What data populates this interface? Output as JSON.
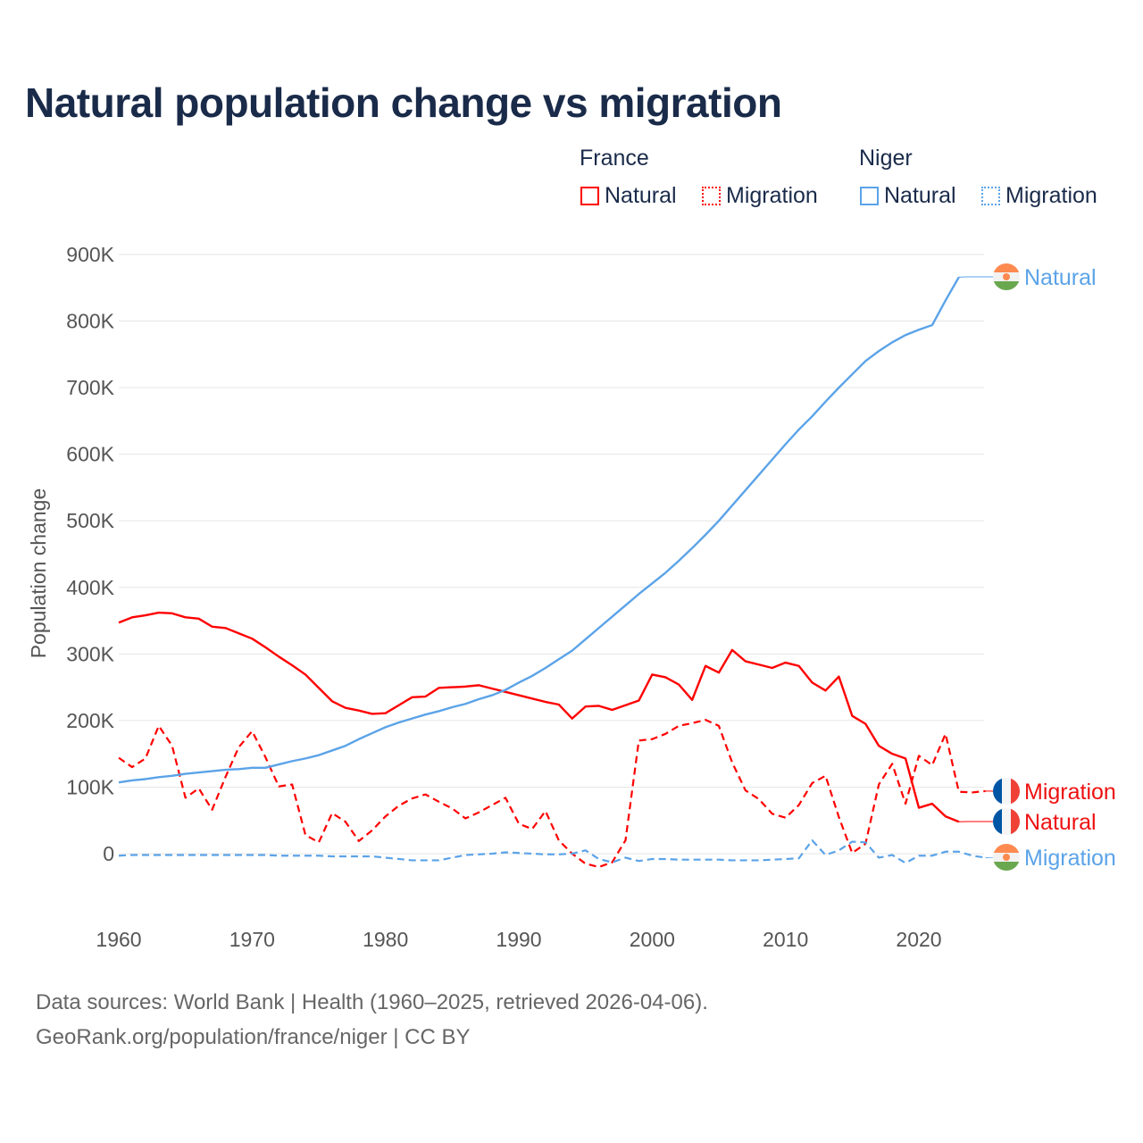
{
  "chart_data": {
    "type": "line",
    "title": "Natural population change vs migration",
    "xlabel": "",
    "ylabel": "Population change",
    "xlim": [
      1960,
      2025
    ],
    "ylim": [
      -50000,
      900000
    ],
    "grid": true,
    "x_ticks": [
      1960,
      1970,
      1980,
      1990,
      2000,
      2010,
      2020
    ],
    "x_tick_labels": [
      "1960",
      "1970",
      "1980",
      "1990",
      "2000",
      "2010",
      "2020"
    ],
    "y_ticks": [
      0,
      100000,
      200000,
      300000,
      400000,
      500000,
      600000,
      700000,
      800000,
      900000
    ],
    "y_tick_labels": [
      "0",
      "100K",
      "200K",
      "300K",
      "400K",
      "500K",
      "600K",
      "700K",
      "800K",
      "900K"
    ],
    "legend": {
      "placement": "top-right",
      "groups": [
        {
          "label": "France",
          "items": [
            "Natural",
            "Migration"
          ]
        },
        {
          "label": "Niger",
          "items": [
            "Natural",
            "Migration"
          ]
        }
      ]
    },
    "series": [
      {
        "name": "France Natural",
        "country": "France",
        "kind": "Natural",
        "label": "Natural",
        "color": "#ff0000",
        "dash": false,
        "x0": 1960,
        "values": [
          347000,
          355000,
          358000,
          362000,
          361000,
          355000,
          353000,
          341000,
          339000,
          331000,
          323000,
          310000,
          296000,
          283000,
          269000,
          249000,
          229000,
          219000,
          215000,
          210000,
          211000,
          223000,
          235000,
          236000,
          249000,
          250000,
          251000,
          253000,
          248000,
          243000,
          238000,
          233000,
          228000,
          224000,
          203000,
          221000,
          222000,
          216000,
          223000,
          230000,
          269000,
          265000,
          254000,
          231000,
          282000,
          272000,
          306000,
          289000,
          284000,
          279000,
          287000,
          282000,
          257000,
          245000,
          266000,
          207000,
          195000,
          162000,
          150000,
          143000,
          69000,
          75000,
          56000,
          48000
        ]
      },
      {
        "name": "France Migration",
        "country": "France",
        "kind": "Migration",
        "label": "Migration",
        "color": "#ff0000",
        "dash": true,
        "x0": 1960,
        "values": [
          144000,
          130000,
          143000,
          192000,
          162000,
          84000,
          98000,
          66000,
          115000,
          160000,
          184000,
          145000,
          101000,
          104000,
          28000,
          17000,
          61000,
          48000,
          19000,
          35000,
          56000,
          72000,
          83000,
          89000,
          78000,
          68000,
          53000,
          62000,
          73000,
          84000,
          45000,
          37000,
          64000,
          20000,
          0,
          -15000,
          -20000,
          -13000,
          20000,
          170000,
          172000,
          180000,
          192000,
          196000,
          201000,
          192000,
          137000,
          95000,
          82000,
          60000,
          54000,
          73000,
          106000,
          117000,
          55000,
          1000,
          15000,
          104000,
          135000,
          75000,
          147000,
          133000,
          180000,
          93000,
          92000,
          94000
        ]
      },
      {
        "name": "Niger Natural",
        "country": "Niger",
        "kind": "Natural",
        "label": "Natural",
        "color": "#5ba3e8",
        "dash": false,
        "x0": 1960,
        "values": [
          107000,
          110000,
          112000,
          115000,
          117000,
          120000,
          122000,
          124000,
          126000,
          127000,
          129000,
          129000,
          134000,
          139000,
          143000,
          148000,
          155000,
          162000,
          172000,
          181000,
          190000,
          197000,
          203000,
          209000,
          214000,
          220000,
          225000,
          232000,
          238000,
          246000,
          257000,
          267000,
          279000,
          292000,
          305000,
          322000,
          339000,
          356000,
          373000,
          390000,
          406000,
          422000,
          440000,
          459000,
          479000,
          500000,
          523000,
          546000,
          569000,
          592000,
          615000,
          637000,
          657000,
          679000,
          700000,
          720000,
          740000,
          755000,
          768000,
          779000,
          787000,
          794000,
          831000,
          866000
        ]
      },
      {
        "name": "Niger Migration",
        "country": "Niger",
        "kind": "Migration",
        "label": "Migration",
        "color": "#5ba3e8",
        "dash": true,
        "x0": 1960,
        "values": [
          -3000,
          -2000,
          -2000,
          -2000,
          -2000,
          -2000,
          -2000,
          -2000,
          -2000,
          -2000,
          -2000,
          -2000,
          -3000,
          -3000,
          -3000,
          -3000,
          -4000,
          -4000,
          -4000,
          -4000,
          -6000,
          -8000,
          -10000,
          -10000,
          -10000,
          -6000,
          -2000,
          -1000,
          0,
          2000,
          1000,
          0,
          -1000,
          -1000,
          0,
          5000,
          -8000,
          -13000,
          -6000,
          -11000,
          -8000,
          -8000,
          -9000,
          -9000,
          -9000,
          -9000,
          -10000,
          -10000,
          -10000,
          -9000,
          -8000,
          -7000,
          20000,
          -2000,
          5000,
          18000,
          17000,
          -6000,
          -2000,
          -14000,
          -3000,
          -3000,
          3000,
          3000,
          -3000,
          -6000
        ]
      }
    ],
    "end_labels": [
      {
        "series": "Niger Natural",
        "text": "Natural",
        "flag": "niger-flag-icon"
      },
      {
        "series": "France Migration",
        "text": "Migration",
        "flag": "france-flag-icon"
      },
      {
        "series": "France Natural",
        "text": "Natural",
        "flag": "france-flag-icon"
      },
      {
        "series": "Niger Migration",
        "text": "Migration",
        "flag": "niger-flag-icon"
      }
    ]
  },
  "sources": {
    "line1": "Data sources: World Bank | Health (1960–2025, retrieved 2026-04-06).",
    "line2": "GeoRank.org/population/france/niger | CC BY"
  }
}
